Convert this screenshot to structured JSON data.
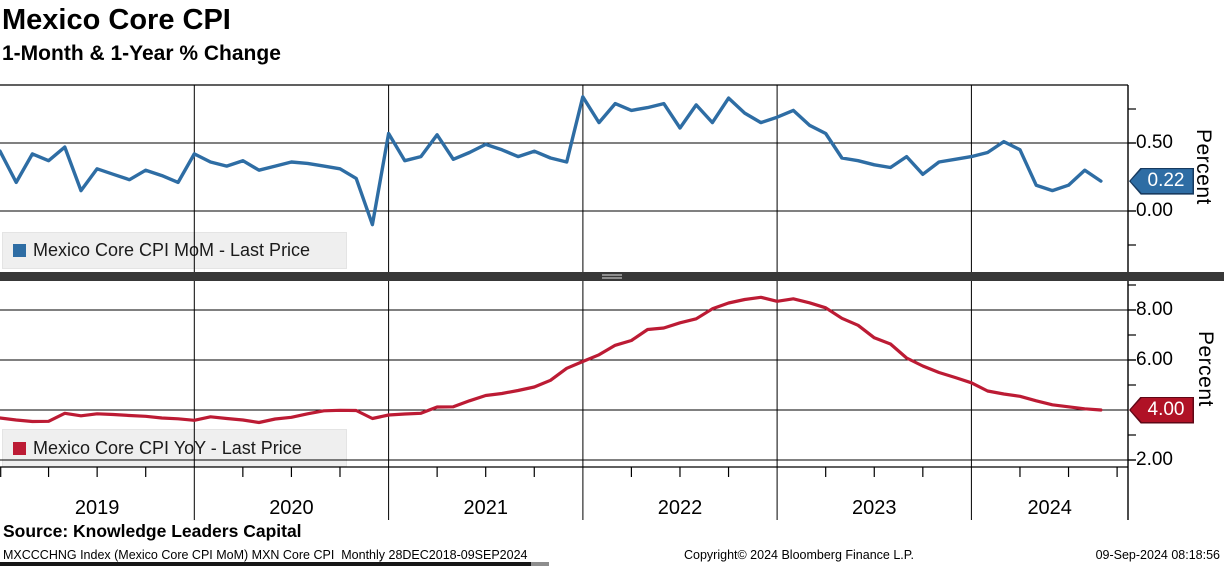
{
  "header": {
    "title": "Mexico Core CPI",
    "subtitle": "1-Month & 1-Year % Change"
  },
  "colors": {
    "mom_line": "#2e6da4",
    "mom_badge": "#2e6da4",
    "mom_badge_border": "#173a5f",
    "yoy_line": "#bc1b34",
    "yoy_badge": "#b01226",
    "yoy_badge_border": "#5f0716",
    "grid": "#000000",
    "divider": "#383838",
    "divider_handle": "#ababab",
    "legend_bg": "#efefef"
  },
  "top_panel": {
    "legend": {
      "label": "Mexico Core CPI MoM - Last Price"
    },
    "axis_label": "Percent",
    "ticks": [
      {
        "value": 0.5,
        "label": "0.50"
      },
      {
        "value": 0.0,
        "label": "0.00"
      }
    ],
    "minor_ticks": [
      0.75,
      -0.25
    ],
    "badge": {
      "value": 0.22,
      "label": "0.22"
    }
  },
  "bottom_panel": {
    "legend": {
      "label": "Mexico Core CPI YoY - Last Price"
    },
    "axis_label": "Percent",
    "ticks": [
      {
        "value": 8.0,
        "label": "8.00"
      },
      {
        "value": 6.0,
        "label": "6.00"
      },
      {
        "value": 2.0,
        "label": "2.00"
      }
    ],
    "minor_ticks": [
      9.0,
      7.0,
      5.0,
      3.0
    ],
    "badge": {
      "value": 4.0,
      "label": "4.00"
    }
  },
  "x_axis": {
    "year_labels": [
      "2019",
      "2020",
      "2021",
      "2022",
      "2023",
      "2024"
    ]
  },
  "footer": {
    "source": "Source: Knowledge Leaders Capital",
    "info_left": "MXCCCHNG Index (Mexico Core CPI MoM) MXN Core CPI  Monthly 28DEC2018-09SEP2024",
    "info_center": "Copyright© 2024 Bloomberg Finance L.P.",
    "info_right": "09-Sep-2024 08:18:56"
  },
  "chart_data": [
    {
      "type": "line",
      "name": "Mexico Core CPI MoM - Last Price",
      "title": "Mexico Core CPI 1-Month % Change",
      "ylabel": "Percent",
      "x_start": "2018-12",
      "x_end": "2024-08",
      "frequency": "monthly",
      "last_price": 0.22,
      "ylim": [
        -0.35,
        0.95
      ],
      "y_ticks_labeled": [
        0.5,
        0.0
      ],
      "legend_position": "bottom-left",
      "grid": true,
      "values": [
        0.44,
        0.21,
        0.42,
        0.37,
        0.47,
        0.15,
        0.31,
        0.27,
        0.23,
        0.3,
        0.26,
        0.21,
        0.42,
        0.36,
        0.33,
        0.37,
        0.3,
        0.33,
        0.36,
        0.35,
        0.33,
        0.31,
        0.24,
        -0.1,
        0.57,
        0.37,
        0.4,
        0.56,
        0.38,
        0.43,
        0.49,
        0.45,
        0.4,
        0.44,
        0.39,
        0.36,
        0.84,
        0.65,
        0.79,
        0.74,
        0.76,
        0.79,
        0.61,
        0.78,
        0.65,
        0.83,
        0.72,
        0.65,
        0.69,
        0.74,
        0.63,
        0.57,
        0.39,
        0.37,
        0.34,
        0.32,
        0.4,
        0.27,
        0.36,
        0.38,
        0.4,
        0.43,
        0.51,
        0.45,
        0.19,
        0.15,
        0.19,
        0.3,
        0.22
      ]
    },
    {
      "type": "line",
      "name": "Mexico Core CPI YoY - Last Price",
      "title": "Mexico Core CPI 1-Year % Change",
      "ylabel": "Percent",
      "x_start": "2018-12",
      "x_end": "2024-08",
      "frequency": "monthly",
      "last_price": 4.0,
      "ylim": [
        1.6,
        9.4
      ],
      "y_ticks_labeled": [
        8.0,
        6.0,
        4.0,
        2.0
      ],
      "legend_position": "bottom-left",
      "grid": true,
      "values": [
        3.68,
        3.6,
        3.54,
        3.55,
        3.87,
        3.77,
        3.85,
        3.82,
        3.78,
        3.75,
        3.68,
        3.65,
        3.59,
        3.73,
        3.66,
        3.6,
        3.5,
        3.64,
        3.71,
        3.85,
        3.97,
        3.99,
        3.98,
        3.66,
        3.8,
        3.84,
        3.87,
        4.12,
        4.13,
        4.37,
        4.58,
        4.66,
        4.78,
        4.92,
        5.19,
        5.67,
        5.94,
        6.21,
        6.59,
        6.78,
        7.22,
        7.28,
        7.49,
        7.65,
        8.05,
        8.28,
        8.42,
        8.51,
        8.35,
        8.45,
        8.29,
        8.09,
        7.67,
        7.39,
        6.89,
        6.64,
        6.08,
        5.76,
        5.5,
        5.3,
        5.09,
        4.76,
        4.64,
        4.55,
        4.37,
        4.21,
        4.13,
        4.05,
        4.0
      ]
    }
  ]
}
